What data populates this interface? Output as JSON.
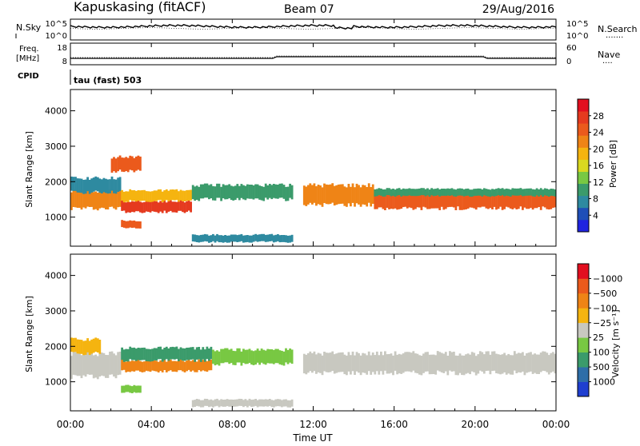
{
  "header": {
    "station": "Kapuskasing (fitACF)",
    "beam": "Beam 07",
    "date": "29/Aug/2016"
  },
  "top_panels": {
    "nsky_label": "N.Sky",
    "nsearch_label": "N.Search",
    "nsearch_dots": "·······",
    "noise_left_ticks": [
      "10^5",
      "10^0"
    ],
    "noise_right_ticks": [
      "10^5",
      "10^0"
    ],
    "freq_label_1": "Freq.",
    "freq_label_2": "[MHz]",
    "freq_ticks": [
      "18",
      "8"
    ],
    "nave_label": "Nave",
    "nave_dots": "····",
    "nave_ticks": [
      "60",
      "0"
    ],
    "cpid_label": "CPID",
    "cpid_value": "tau (fast) 503"
  },
  "chart_data": [
    {
      "type": "heatmap",
      "title": "",
      "ylabel": "Slant Range [km]",
      "ylim": [
        180,
        4600
      ],
      "yticks": [
        "1000",
        "2000",
        "3000",
        "4000"
      ],
      "xlim": [
        0,
        24
      ],
      "colorbar": {
        "label": "Power [dB]",
        "ticks": [
          "4",
          "8",
          "12",
          "16",
          "20",
          "24",
          "28"
        ],
        "colors": [
          "#1f24e0",
          "#1f4fb8",
          "#2e8aa0",
          "#3b9b6b",
          "#78c843",
          "#d9d820",
          "#f5b410",
          "#ef8416",
          "#eb5a1c",
          "#e53a1f",
          "#e20f1f"
        ]
      },
      "bands": [
        {
          "t0": 0.0,
          "t1": 2.5,
          "lo": 1250,
          "hi": 1750,
          "c": "#ef8416"
        },
        {
          "t0": 0.0,
          "t1": 2.5,
          "lo": 1700,
          "hi": 2100,
          "c": "#2e8aa0"
        },
        {
          "t0": 2.5,
          "t1": 6.0,
          "lo": 1150,
          "hi": 1450,
          "c": "#e53a1f"
        },
        {
          "t0": 2.5,
          "t1": 6.0,
          "lo": 1450,
          "hi": 1750,
          "c": "#f5b410"
        },
        {
          "t0": 6.0,
          "t1": 11.0,
          "lo": 1500,
          "hi": 1900,
          "c": "#3b9b6b"
        },
        {
          "t0": 11.5,
          "t1": 15.0,
          "lo": 1350,
          "hi": 1900,
          "c": "#ef8416"
        },
        {
          "t0": 15.0,
          "t1": 24.0,
          "lo": 1250,
          "hi": 1700,
          "c": "#eb5a1c"
        },
        {
          "t0": 15.0,
          "t1": 24.0,
          "lo": 1600,
          "hi": 1800,
          "c": "#3b9b6b"
        },
        {
          "t0": 2.0,
          "t1": 3.5,
          "lo": 2300,
          "hi": 2700,
          "c": "#eb5a1c"
        },
        {
          "t0": 2.5,
          "t1": 3.5,
          "lo": 700,
          "hi": 900,
          "c": "#eb5a1c"
        },
        {
          "t0": 6.0,
          "t1": 11.0,
          "lo": 300,
          "hi": 500,
          "c": "#2e8aa0"
        }
      ]
    },
    {
      "type": "heatmap",
      "title": "",
      "ylabel": "Slant Range [km]",
      "ylim": [
        180,
        4600
      ],
      "yticks": [
        "1000",
        "2000",
        "3000",
        "4000"
      ],
      "xlim": [
        0,
        24
      ],
      "xticks": [
        "00:00",
        "04:00",
        "08:00",
        "12:00",
        "16:00",
        "20:00",
        "00:00"
      ],
      "xlabel": "Time UT",
      "colorbar": {
        "label": "Velocity [m s⁻¹]",
        "ticks": [
          "1000",
          "500",
          "100",
          "25",
          "−25",
          "−100",
          "−500",
          "−1000"
        ],
        "colors": [
          "#1f3fd0",
          "#2e6ea8",
          "#3b9b6b",
          "#78c843",
          "#c8c8c0",
          "#f5b410",
          "#ef8416",
          "#eb5a1c",
          "#e20f1f"
        ]
      },
      "bands": [
        {
          "t0": 0.0,
          "t1": 2.5,
          "lo": 1150,
          "hi": 1800,
          "c": "#c8c8c0"
        },
        {
          "t0": 0.0,
          "t1": 1.5,
          "lo": 1800,
          "hi": 2200,
          "c": "#f5b410"
        },
        {
          "t0": 2.5,
          "t1": 7.0,
          "lo": 1300,
          "hi": 1600,
          "c": "#ef8416"
        },
        {
          "t0": 2.5,
          "t1": 7.0,
          "lo": 1600,
          "hi": 1950,
          "c": "#3b9b6b"
        },
        {
          "t0": 7.0,
          "t1": 11.0,
          "lo": 1500,
          "hi": 1900,
          "c": "#78c843"
        },
        {
          "t0": 11.5,
          "t1": 24.0,
          "lo": 1250,
          "hi": 1800,
          "c": "#c8c8c0"
        },
        {
          "t0": 2.5,
          "t1": 3.5,
          "lo": 700,
          "hi": 900,
          "c": "#78c843"
        },
        {
          "t0": 6.0,
          "t1": 11.0,
          "lo": 300,
          "hi": 500,
          "c": "#c8c8c0"
        }
      ]
    }
  ]
}
